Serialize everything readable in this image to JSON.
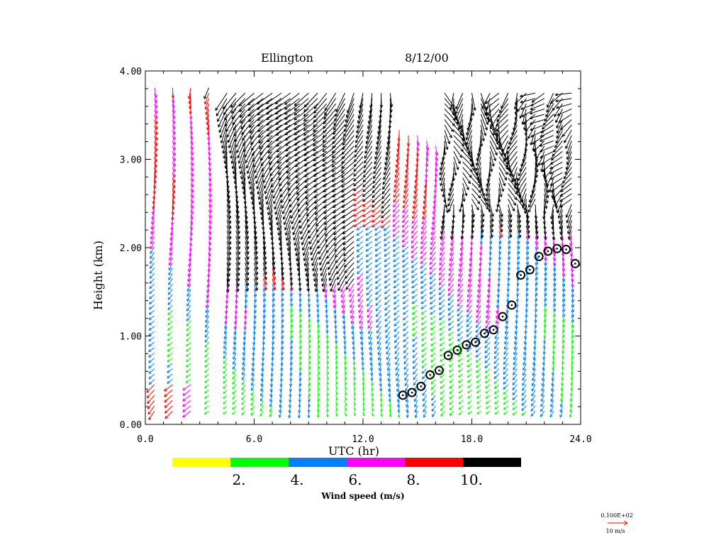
{
  "chart_data": {
    "type": "wind-profile-barbs",
    "title": {
      "station": "Ellington",
      "date": "8/12/00"
    },
    "xlabel": "UTC (hr)",
    "ylabel": "Height (km)",
    "xlim": [
      0,
      24
    ],
    "ylim": [
      0,
      4
    ],
    "x_tick_labels": [
      "0.0",
      "6.0",
      "12.0",
      "18.0",
      "24.0"
    ],
    "x_ticks": [
      0,
      6,
      12,
      18,
      24
    ],
    "y_tick_labels": [
      "0.00",
      "1.00",
      "2.00",
      "3.00",
      "4.00"
    ],
    "y_ticks": [
      0,
      1,
      2,
      3,
      4
    ],
    "colorbar": {
      "label": "Wind speed (m/s)",
      "colors": [
        "#ffff00",
        "#00ff00",
        "#0080ff",
        "#ff00ff",
        "#ff0000",
        "#000000"
      ],
      "boundaries": [
        0,
        2,
        4,
        6,
        8,
        10,
        12
      ],
      "tick_labels": [
        "2.",
        "4.",
        "6.",
        "8.",
        "10."
      ]
    },
    "reference_vector": {
      "value_label": "0.100E+02",
      "unit_label": "10 m/s",
      "color": "#ff0000"
    },
    "profile_times": [
      0.5,
      1.5,
      2.5,
      3.5,
      4.5,
      5.0,
      5.5,
      6.0,
      6.5,
      7.0,
      7.5,
      8.0,
      8.5,
      9.0,
      9.5,
      10.0,
      10.5,
      11.0,
      11.5,
      12.0,
      12.5,
      13.0,
      13.5,
      14.0,
      14.5,
      15.0,
      15.5,
      16.0,
      16.5,
      17.0,
      17.5,
      18.0,
      18.5,
      19.0,
      19.5,
      20.0,
      20.5,
      21.0,
      21.5,
      22.0,
      22.5,
      23.0,
      23.5
    ],
    "gate_spacing_km": 0.06,
    "min_height_km": 0.15,
    "mixing_height": {
      "marker": "circle",
      "times": [
        14.2,
        14.7,
        15.2,
        15.7,
        16.2,
        16.7,
        17.2,
        17.7,
        18.2,
        18.7,
        19.2,
        19.7,
        20.2,
        20.7,
        21.2,
        21.7,
        22.2,
        22.7,
        23.2,
        23.7
      ],
      "heights": [
        0.33,
        0.36,
        0.43,
        0.56,
        0.61,
        0.78,
        0.84,
        0.9,
        0.93,
        1.03,
        1.07,
        1.22,
        1.35,
        1.69,
        1.75,
        1.9,
        1.96,
        1.99,
        1.98,
        1.82
      ]
    }
  }
}
